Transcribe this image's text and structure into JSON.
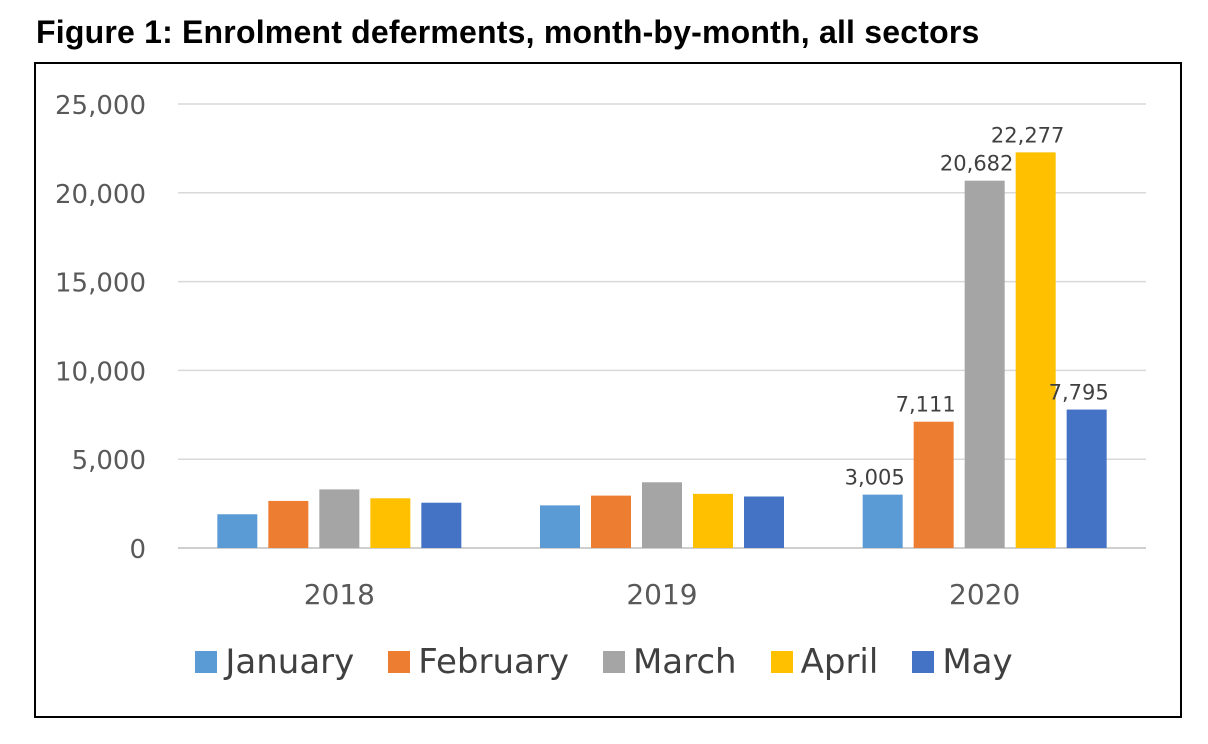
{
  "title": "Figure 1: Enrolment deferments, month-by-month, all sectors",
  "chart_data": {
    "type": "bar",
    "title": "Figure 1: Enrolment deferments, month-by-month, all sectors",
    "xlabel": "",
    "ylabel": "",
    "categories": [
      "2018",
      "2019",
      "2020"
    ],
    "ylim": [
      0,
      25000
    ],
    "yticks": [
      "0",
      "5,000",
      "10,000",
      "15,000",
      "20,000",
      "25,000"
    ],
    "grid": true,
    "legend_position": "bottom",
    "series": [
      {
        "name": "January",
        "color": "#5B9BD5",
        "values": [
          1900,
          2400,
          3005
        ],
        "labels": [
          "",
          "",
          "3,005"
        ]
      },
      {
        "name": "February",
        "color": "#ED7D31",
        "values": [
          2650,
          2950,
          7111
        ],
        "labels": [
          "",
          "",
          "7,111"
        ]
      },
      {
        "name": "March",
        "color": "#A5A5A5",
        "values": [
          3300,
          3700,
          20682
        ],
        "labels": [
          "",
          "",
          "20,682"
        ]
      },
      {
        "name": "April",
        "color": "#FFC000",
        "values": [
          2800,
          3050,
          22277
        ],
        "labels": [
          "",
          "",
          "22,277"
        ]
      },
      {
        "name": "May",
        "color": "#4472C4",
        "values": [
          2550,
          2900,
          7795
        ],
        "labels": [
          "",
          "",
          "7,795"
        ]
      }
    ]
  }
}
